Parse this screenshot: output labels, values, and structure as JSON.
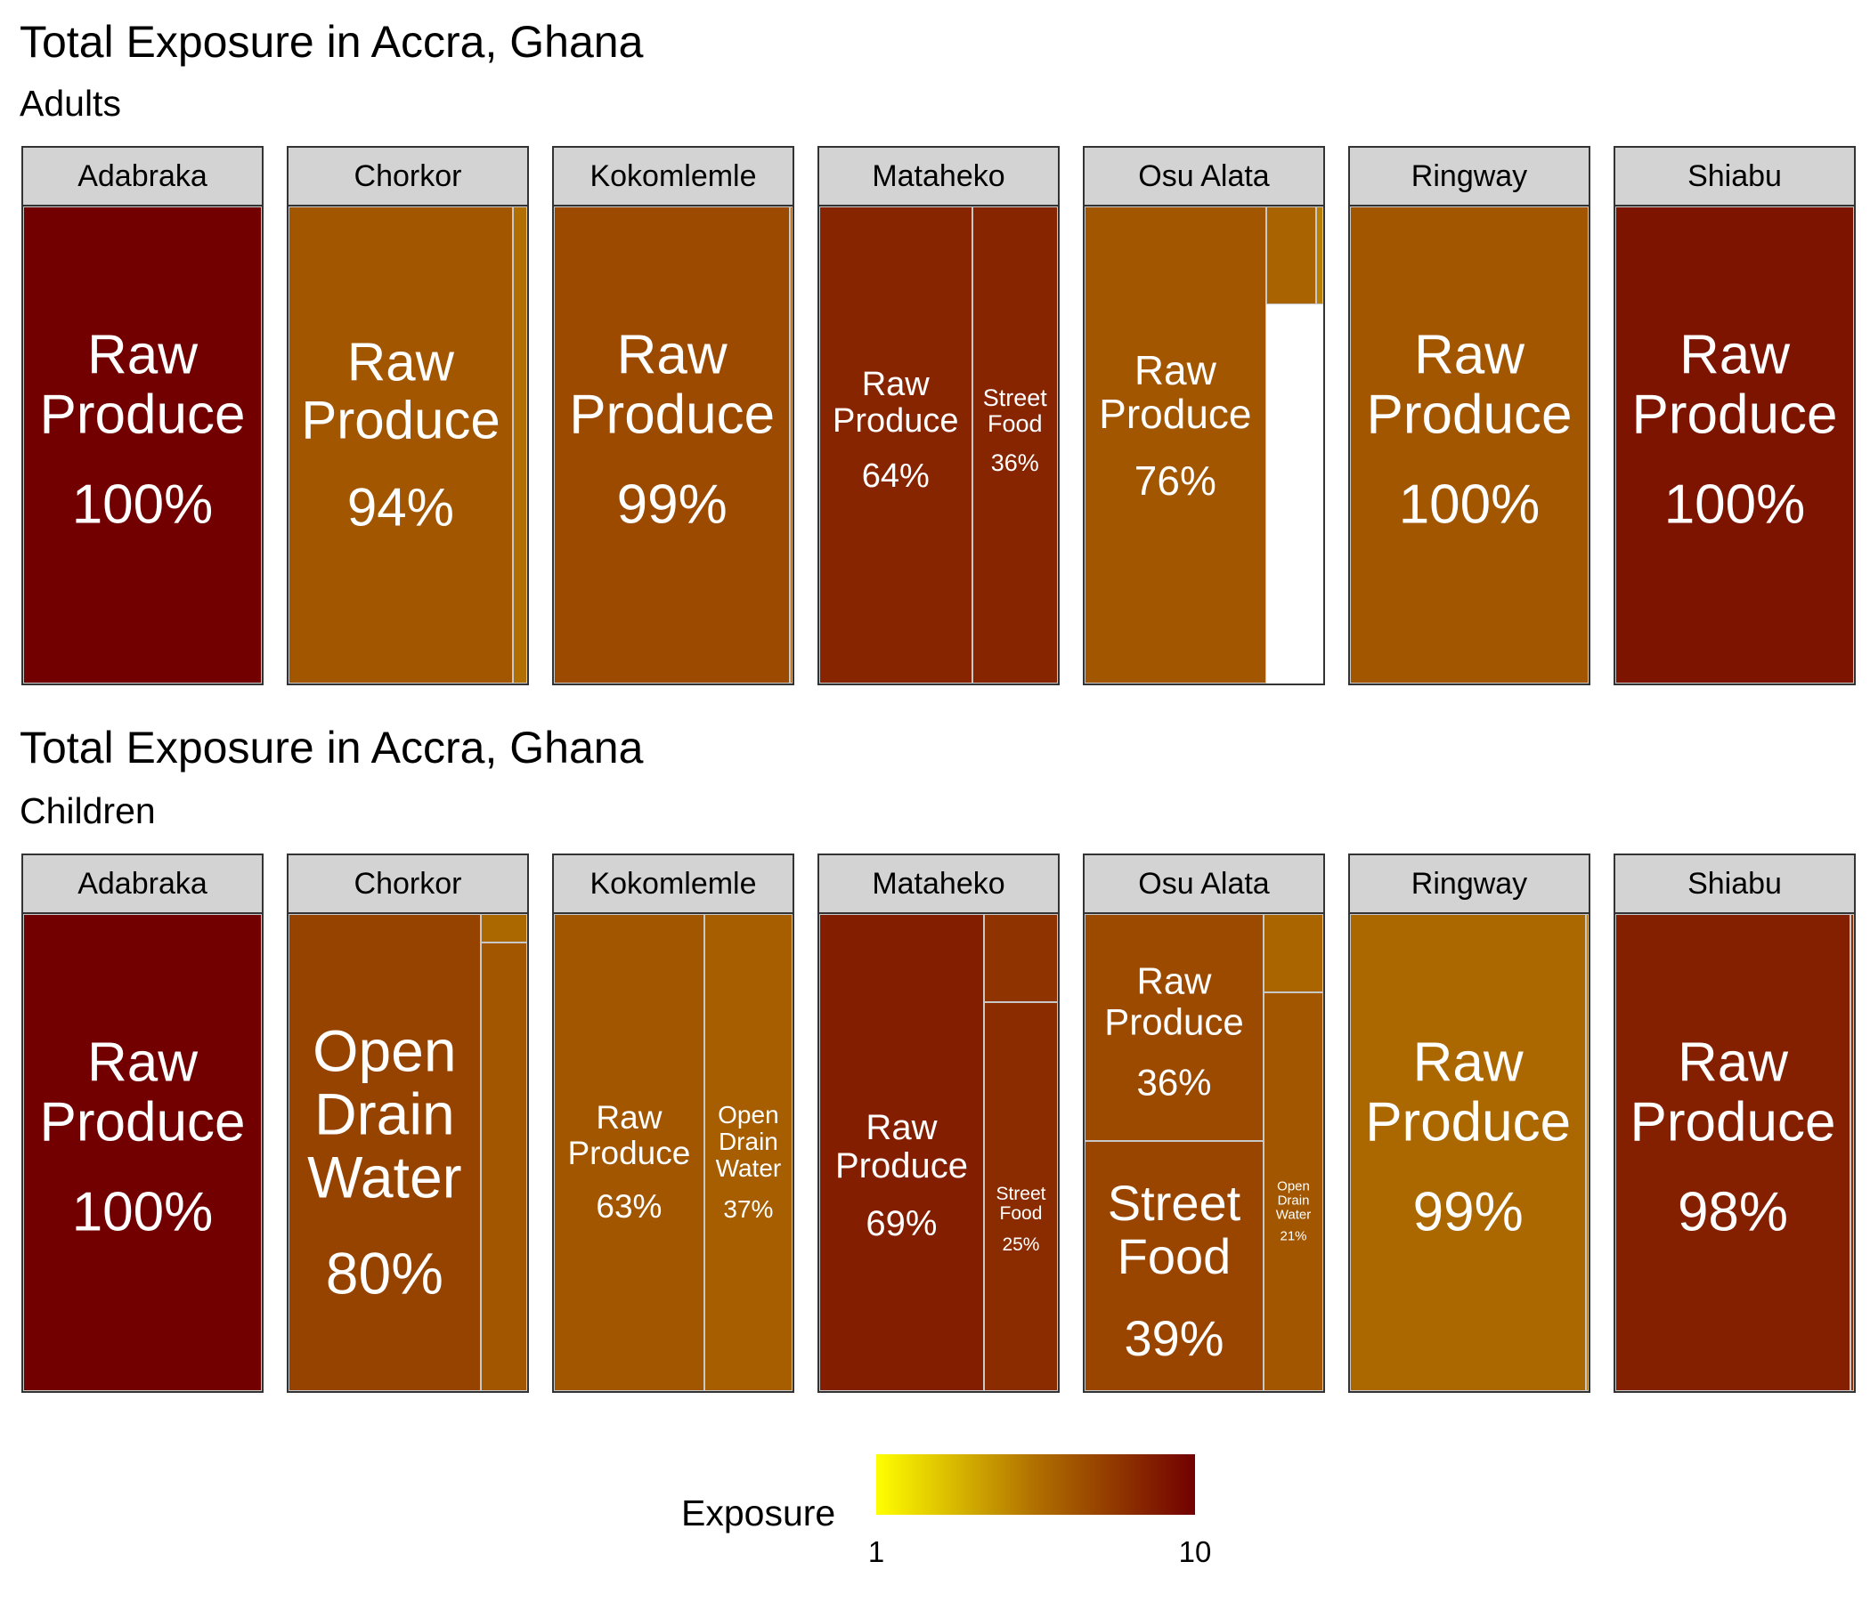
{
  "chart_data": [
    {
      "type": "treemap",
      "title": "Total Exposure in Accra, Ghana",
      "subtitle": "Adults",
      "facets": [
        {
          "name": "Adabraka",
          "tiles": [
            {
              "label": "Raw\nProduce",
              "percent": "100%",
              "share": 1.0,
              "exposure": 10
            }
          ]
        },
        {
          "name": "Chorkor",
          "tiles": [
            {
              "label": "Raw\nProduce",
              "percent": "94%",
              "share": 0.94,
              "exposure": 6.5
            },
            {
              "label": "",
              "percent": "",
              "share": 0.06,
              "exposure": 5.5
            }
          ]
        },
        {
          "name": "Kokomlemle",
          "tiles": [
            {
              "label": "Raw\nProduce",
              "percent": "99%",
              "share": 0.99,
              "exposure": 7
            },
            {
              "label": "",
              "percent": "",
              "share": 0.01,
              "exposure": 6.5
            }
          ]
        },
        {
          "name": "Mataheko",
          "tiles": [
            {
              "label": "Raw\nProduce",
              "percent": "64%",
              "share": 0.64,
              "exposure": 8.5
            },
            {
              "label": "Street\nFood",
              "percent": "36%",
              "share": 0.36,
              "exposure": 8.5
            }
          ]
        },
        {
          "name": "Osu Alata",
          "tiles": [
            {
              "label": "Raw\nProduce",
              "percent": "76%",
              "share": 0.76,
              "exposure": 6.5
            },
            {
              "label": "",
              "percent": "",
              "share": 0.19,
              "exposure": 6
            },
            {
              "label": "",
              "percent": "",
              "share": 0.05,
              "exposure": 5
            }
          ]
        },
        {
          "name": "Ringway",
          "tiles": [
            {
              "label": "Raw\nProduce",
              "percent": "100%",
              "share": 1.0,
              "exposure": 6.5
            }
          ]
        },
        {
          "name": "Shiabu",
          "tiles": [
            {
              "label": "Raw\nProduce",
              "percent": "100%",
              "share": 1.0,
              "exposure": 9.2
            }
          ]
        }
      ]
    },
    {
      "type": "treemap",
      "title": "Total Exposure in Accra, Ghana",
      "subtitle": "Children",
      "facets": [
        {
          "name": "Adabraka",
          "tiles": [
            {
              "label": "Raw\nProduce",
              "percent": "100%",
              "share": 1.0,
              "exposure": 10
            }
          ]
        },
        {
          "name": "Chorkor",
          "tiles": [
            {
              "label": "Open\nDrain\nWater",
              "percent": "80%",
              "share": 0.8,
              "exposure": 7.3
            },
            {
              "label": "",
              "percent": "",
              "share": 0.14,
              "exposure": 6.5
            },
            {
              "label": "",
              "percent": "",
              "share": 0.06,
              "exposure": 5.8
            }
          ]
        },
        {
          "name": "Kokomlemle",
          "tiles": [
            {
              "label": "Raw\nProduce",
              "percent": "63%",
              "share": 0.63,
              "exposure": 6.5
            },
            {
              "label": "Open\nDrain\nWater",
              "percent": "37%",
              "share": 0.37,
              "exposure": 6.2
            }
          ]
        },
        {
          "name": "Mataheko",
          "tiles": [
            {
              "label": "Raw\nProduce",
              "percent": "69%",
              "share": 0.69,
              "exposure": 8.8
            },
            {
              "label": "Street\nFood",
              "percent": "25%",
              "share": 0.25,
              "exposure": 8.2
            },
            {
              "label": "",
              "percent": "",
              "share": 0.06,
              "exposure": 7.9
            }
          ]
        },
        {
          "name": "Osu Alata",
          "tiles": [
            {
              "label": "Street\nFood",
              "percent": "39%",
              "share": 0.39,
              "exposure": 7.2
            },
            {
              "label": "Raw\nProduce",
              "percent": "36%",
              "share": 0.36,
              "exposure": 7.0
            },
            {
              "label": "Open\nDrain\nWater",
              "percent": "21%",
              "share": 0.21,
              "exposure": 6.5
            },
            {
              "label": "",
              "percent": "",
              "share": 0.04,
              "exposure": 5.9
            }
          ]
        },
        {
          "name": "Ringway",
          "tiles": [
            {
              "label": "Raw\nProduce",
              "percent": "99%",
              "share": 0.99,
              "exposure": 5.8
            },
            {
              "label": "",
              "percent": "",
              "share": 0.01,
              "exposure": 5.6
            }
          ]
        },
        {
          "name": "Shiabu",
          "tiles": [
            {
              "label": "Raw\nProduce",
              "percent": "98%",
              "share": 0.98,
              "exposure": 8.7
            },
            {
              "label": "",
              "percent": "",
              "share": 0.02,
              "exposure": 8.0
            }
          ]
        }
      ]
    }
  ],
  "legend": {
    "title": "Exposure",
    "min_label": "1",
    "max_label": "10",
    "range": [
      1,
      10
    ],
    "colors": [
      "#ffff00",
      "#b06f00",
      "#720000"
    ]
  }
}
